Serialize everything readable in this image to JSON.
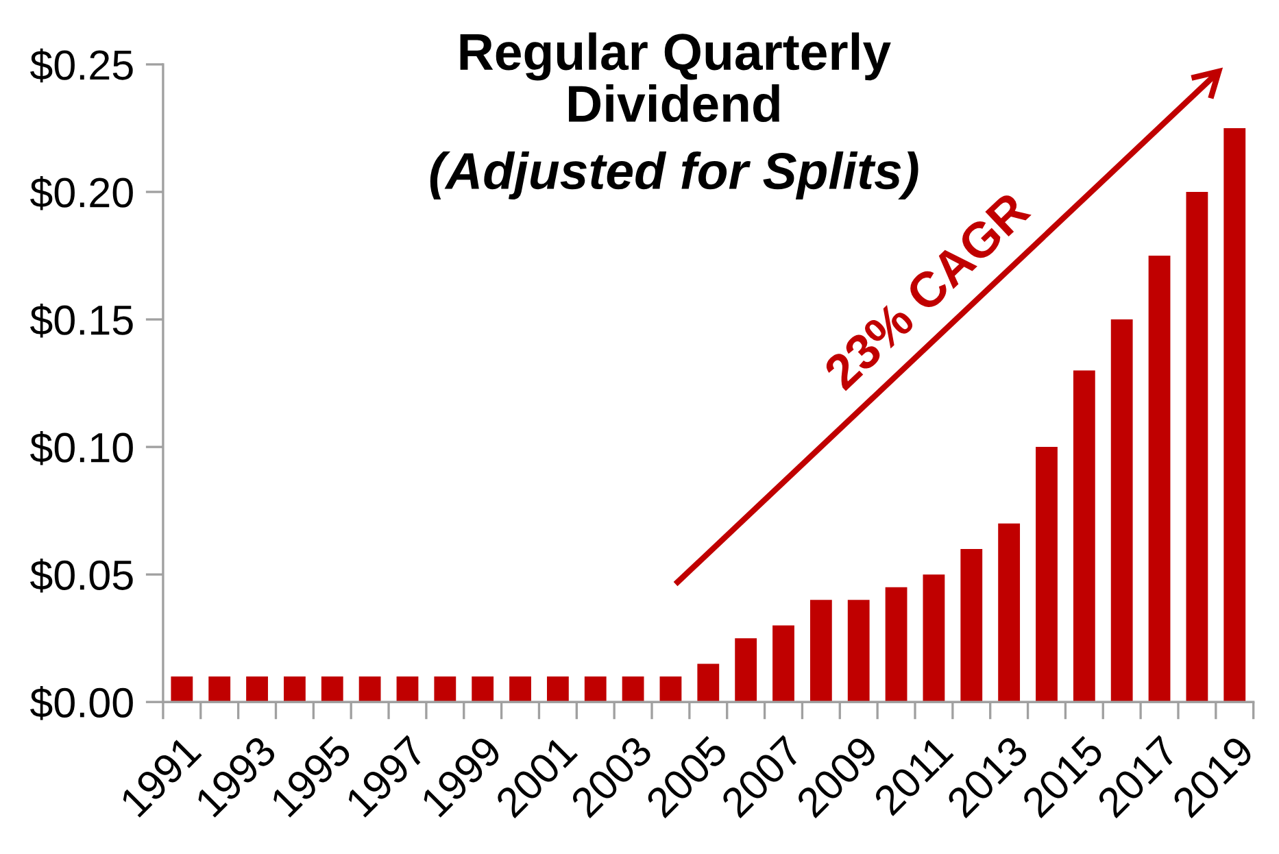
{
  "chart_data": {
    "type": "bar",
    "title": "Regular Quarterly Dividend",
    "subtitle": "(Adjusted for Splits)",
    "categories": [
      "1991",
      null,
      "1993",
      null,
      "1995",
      null,
      "1997",
      null,
      "1999",
      null,
      "2001",
      null,
      "2003",
      null,
      "2005",
      null,
      "2007",
      null,
      "2009",
      null,
      "2011",
      null,
      "2013",
      null,
      "2015",
      null,
      "2017",
      null,
      "2019"
    ],
    "values": [
      0.01,
      0.01,
      0.01,
      0.01,
      0.01,
      0.01,
      0.01,
      0.01,
      0.01,
      0.01,
      0.01,
      0.01,
      0.01,
      0.01,
      0.015,
      0.025,
      0.03,
      0.04,
      0.04,
      0.045,
      0.05,
      0.06,
      0.07,
      0.1,
      0.13,
      0.15,
      0.175,
      0.2,
      0.225
    ],
    "color": "#c00000",
    "ylim": [
      0,
      0.25
    ],
    "yticks": [
      {
        "value": 0,
        "label": "$0.00"
      },
      {
        "value": 0.05,
        "label": "$0.05"
      },
      {
        "value": 0.1,
        "label": "$0.10"
      },
      {
        "value": 0.15,
        "label": "$0.15"
      },
      {
        "value": 0.2,
        "label": "$0.20"
      },
      {
        "value": 0.25,
        "label": "$0.25"
      }
    ],
    "annotations": [
      "23% CAGR"
    ]
  }
}
